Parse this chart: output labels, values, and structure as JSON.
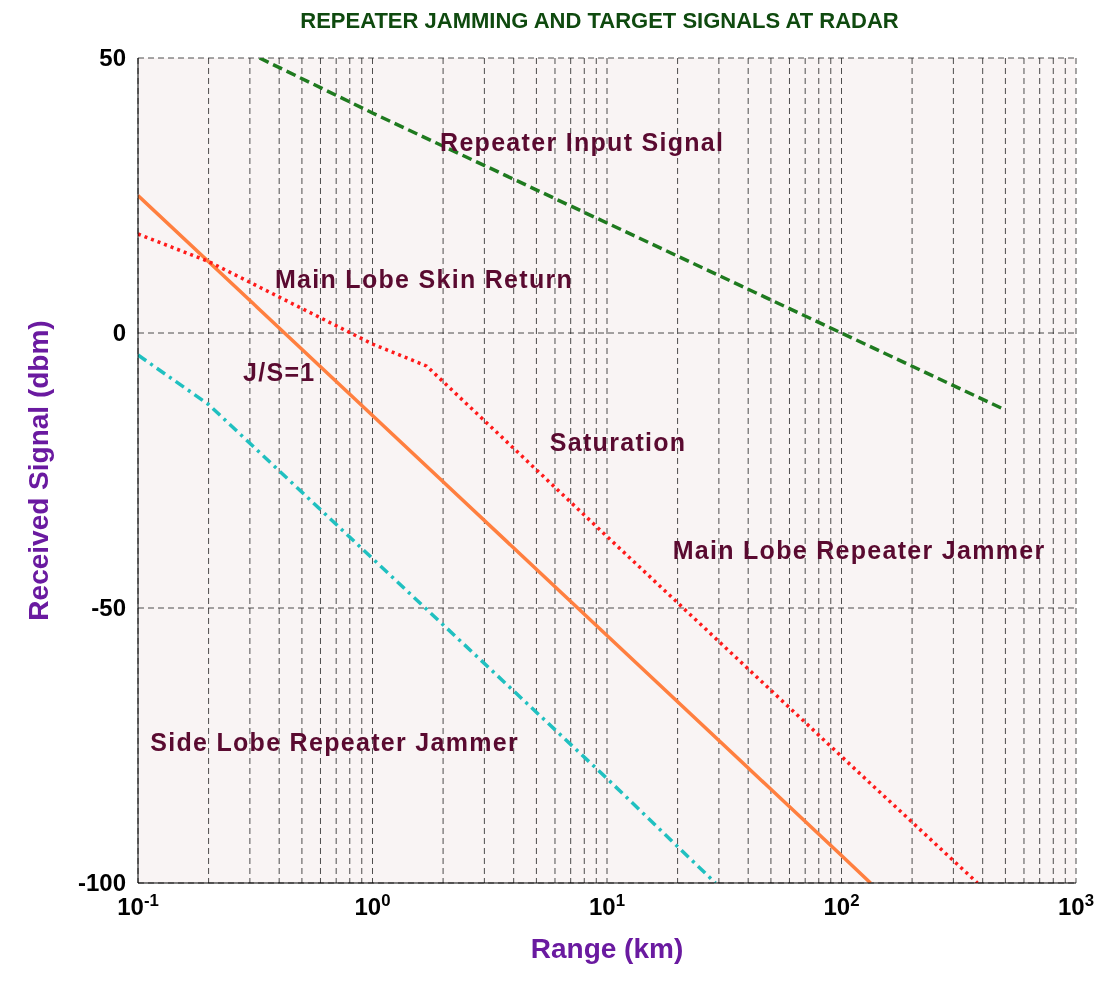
{
  "chart_data": {
    "type": "line",
    "title": "REPEATER JAMMING AND TARGET SIGNALS AT RADAR",
    "xlabel": "Range (km)",
    "ylabel": "Received Signal (dbm)",
    "log": "x",
    "grid": true,
    "legend": false,
    "marker": "none",
    "xlim": [
      0.1,
      1000
    ],
    "ylim": [
      -100,
      50
    ],
    "xticks": [
      {
        "value": 0.1,
        "label": "10$^{-1}$"
      },
      {
        "value": 0.2,
        "label": null
      },
      {
        "value": 0.3,
        "label": null
      },
      {
        "value": 0.4,
        "label": null
      },
      {
        "value": 0.5,
        "label": null
      },
      {
        "value": 0.6,
        "label": null
      },
      {
        "value": 0.7,
        "label": null
      },
      {
        "value": 0.8,
        "label": null
      },
      {
        "value": 0.9,
        "label": null
      },
      {
        "value": 1,
        "label": "10$^{0}$"
      },
      {
        "value": 2,
        "label": null
      },
      {
        "value": 3,
        "label": null
      },
      {
        "value": 4,
        "label": null
      },
      {
        "value": 5,
        "label": null
      },
      {
        "value": 6,
        "label": null
      },
      {
        "value": 7,
        "label": null
      },
      {
        "value": 8,
        "label": null
      },
      {
        "value": 9,
        "label": null
      },
      {
        "value": 10,
        "label": "10$^{1}$"
      },
      {
        "value": 20,
        "label": null
      },
      {
        "value": 30,
        "label": null
      },
      {
        "value": 40,
        "label": null
      },
      {
        "value": 50,
        "label": null
      },
      {
        "value": 60,
        "label": null
      },
      {
        "value": 70,
        "label": null
      },
      {
        "value": 80,
        "label": null
      },
      {
        "value": 90,
        "label": null
      },
      {
        "value": 100,
        "label": "10$^{2}$"
      },
      {
        "value": 200,
        "label": null
      },
      {
        "value": 300,
        "label": null
      },
      {
        "value": 400,
        "label": null
      },
      {
        "value": 500,
        "label": null
      },
      {
        "value": 600,
        "label": null
      },
      {
        "value": 700,
        "label": null
      },
      {
        "value": 800,
        "label": null
      },
      {
        "value": 900,
        "label": null
      },
      {
        "value": 1000,
        "label": "10$^{3}$"
      }
    ],
    "yticks": [
      -100,
      -50,
      0,
      50
    ],
    "series": [
      {
        "color": "#1f7a1f",
        "line_style": "dashed",
        "x": [
          0.33,
          1,
          10,
          100,
          500
        ],
        "values": [
          50,
          40,
          20,
          0,
          -14
        ]
      },
      {
        "color": "#ff7f3f",
        "line_style": "solid",
        "x": [
          0.1,
          1,
          10,
          100,
          133
        ],
        "values": [
          25,
          -15,
          -55,
          -95,
          -100
        ]
      },
      {
        "color": "#ff1a1a",
        "line_style": "dotted",
        "x": [
          0.1,
          0.2,
          1,
          1.7,
          10,
          100,
          380
        ],
        "values": [
          18,
          13,
          -2,
          -6,
          -37,
          -77,
          -100
        ]
      },
      {
        "color": "#20c0c0",
        "line_style": "dashdot",
        "x": [
          0.1,
          0.2,
          1,
          10,
          29
        ],
        "values": [
          -4,
          -13,
          -41,
          -81,
          -100
        ]
      }
    ],
    "annotations": [
      "Repeater Input Signal",
      "Main Lobe Skin Return",
      "J/S=1",
      "Saturation",
      "Main Lobe Repeater Jammer",
      "Side Lobe Repeater Jammer"
    ]
  }
}
